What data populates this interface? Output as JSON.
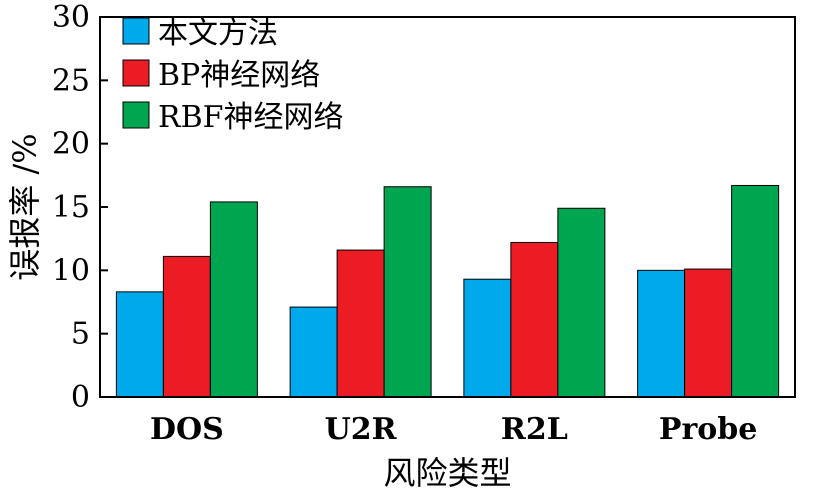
{
  "chart_data": {
    "type": "bar",
    "categories": [
      "DOS",
      "U2R",
      "R2L",
      "Probe"
    ],
    "series": [
      {
        "name": "本文方法",
        "values": [
          8.3,
          7.1,
          9.3,
          10.0
        ],
        "color": "#00a9ec"
      },
      {
        "name": "BP神经网络",
        "values": [
          11.1,
          11.6,
          12.2,
          10.1
        ],
        "color": "#ec1c24"
      },
      {
        "name": "RBF神经网络",
        "values": [
          15.4,
          16.6,
          14.9,
          16.7
        ],
        "color": "#00a550"
      }
    ],
    "xlabel": "风险类型",
    "ylabel": "误报率 /%",
    "ylim": [
      0,
      30
    ],
    "yticks": [
      0,
      5,
      10,
      15,
      20,
      25,
      30
    ],
    "grid": false,
    "legend_position": "top-left"
  }
}
